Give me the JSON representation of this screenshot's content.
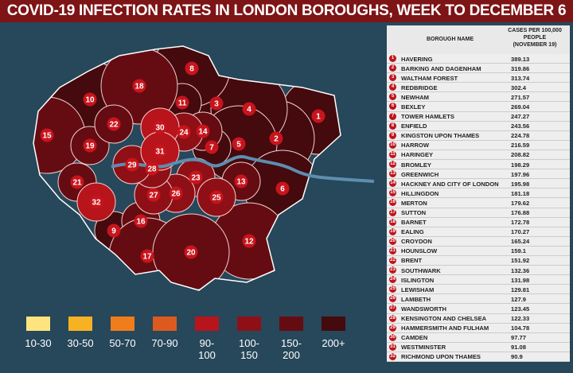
{
  "title": "COVID-19 INFECTION RATES IN LONDON BOROUGHS, WEEK TO DECEMBER 6",
  "table": {
    "headers": [
      "BOROUGH NAME",
      "CASES PER 100,000 PEOPLE (NOVEMBER 19)"
    ],
    "rows": [
      {
        "rank": 1,
        "name": "HAVERING",
        "value": 389.13
      },
      {
        "rank": 2,
        "name": "BARKING AND DAGENHAM",
        "value": 319.86
      },
      {
        "rank": 3,
        "name": "WALTHAM FOREST",
        "value": 313.74
      },
      {
        "rank": 4,
        "name": "REDBRIDGE",
        "value": 302.4
      },
      {
        "rank": 5,
        "name": "NEWHAM",
        "value": 271.57
      },
      {
        "rank": 6,
        "name": "BEXLEY",
        "value": 269.04
      },
      {
        "rank": 7,
        "name": "TOWER HAMLETS",
        "value": 247.27
      },
      {
        "rank": 8,
        "name": "ENFIELD",
        "value": 243.56
      },
      {
        "rank": 9,
        "name": "KINGSTON UPON THAMES",
        "value": 224.78
      },
      {
        "rank": 10,
        "name": "HARROW",
        "value": 216.59
      },
      {
        "rank": 11,
        "name": "HARINGEY",
        "value": 208.82
      },
      {
        "rank": 12,
        "name": "BROMLEY",
        "value": 198.29
      },
      {
        "rank": 13,
        "name": "GREENWICH",
        "value": 197.96
      },
      {
        "rank": 14,
        "name": "HACKNEY AND CITY OF LONDON",
        "value": 195.98
      },
      {
        "rank": 15,
        "name": "HILLINGDON",
        "value": 181.18
      },
      {
        "rank": 16,
        "name": "MERTON",
        "value": 179.62
      },
      {
        "rank": 17,
        "name": "SUTTON",
        "value": 176.88
      },
      {
        "rank": 18,
        "name": "BARNET",
        "value": 172.78
      },
      {
        "rank": 19,
        "name": "EALING",
        "value": 170.27
      },
      {
        "rank": 20,
        "name": "CROYDON",
        "value": 165.24
      },
      {
        "rank": 21,
        "name": "HOUNSLOW",
        "value": 159.1
      },
      {
        "rank": 22,
        "name": "BRENT",
        "value": 151.92
      },
      {
        "rank": 23,
        "name": "SOUTHWARK",
        "value": 132.36
      },
      {
        "rank": 24,
        "name": "ISLINGTON",
        "value": 131.98
      },
      {
        "rank": 25,
        "name": "LEWISHAM",
        "value": 129.81
      },
      {
        "rank": 26,
        "name": "LAMBETH",
        "value": 127.9
      },
      {
        "rank": 27,
        "name": "WANDSWORTH",
        "value": 123.45
      },
      {
        "rank": 28,
        "name": "KENSINGTON AND CHELSEA",
        "value": 122.33
      },
      {
        "rank": 29,
        "name": "HAMMERSMITH AND FULHAM",
        "value": 104.78
      },
      {
        "rank": 30,
        "name": "CAMDEN",
        "value": 97.77
      },
      {
        "rank": 31,
        "name": "WESTMINSTER",
        "value": 91.08
      },
      {
        "rank": 32,
        "name": "RICHMOND UPON THAMES",
        "value": 90.9
      }
    ]
  },
  "legend": [
    {
      "label": "10-30",
      "color": "#fde47f"
    },
    {
      "label": "30-50",
      "color": "#f7b224"
    },
    {
      "label": "50-70",
      "color": "#f07d1c"
    },
    {
      "label": "70-90",
      "color": "#dd5a1f"
    },
    {
      "label": "90-100",
      "color": "#b8141c"
    },
    {
      "label": "100-150",
      "color": "#8e1016"
    },
    {
      "label": "150-200",
      "color": "#650c12"
    },
    {
      "label": "200+",
      "color": "#440a0e"
    }
  ]
}
